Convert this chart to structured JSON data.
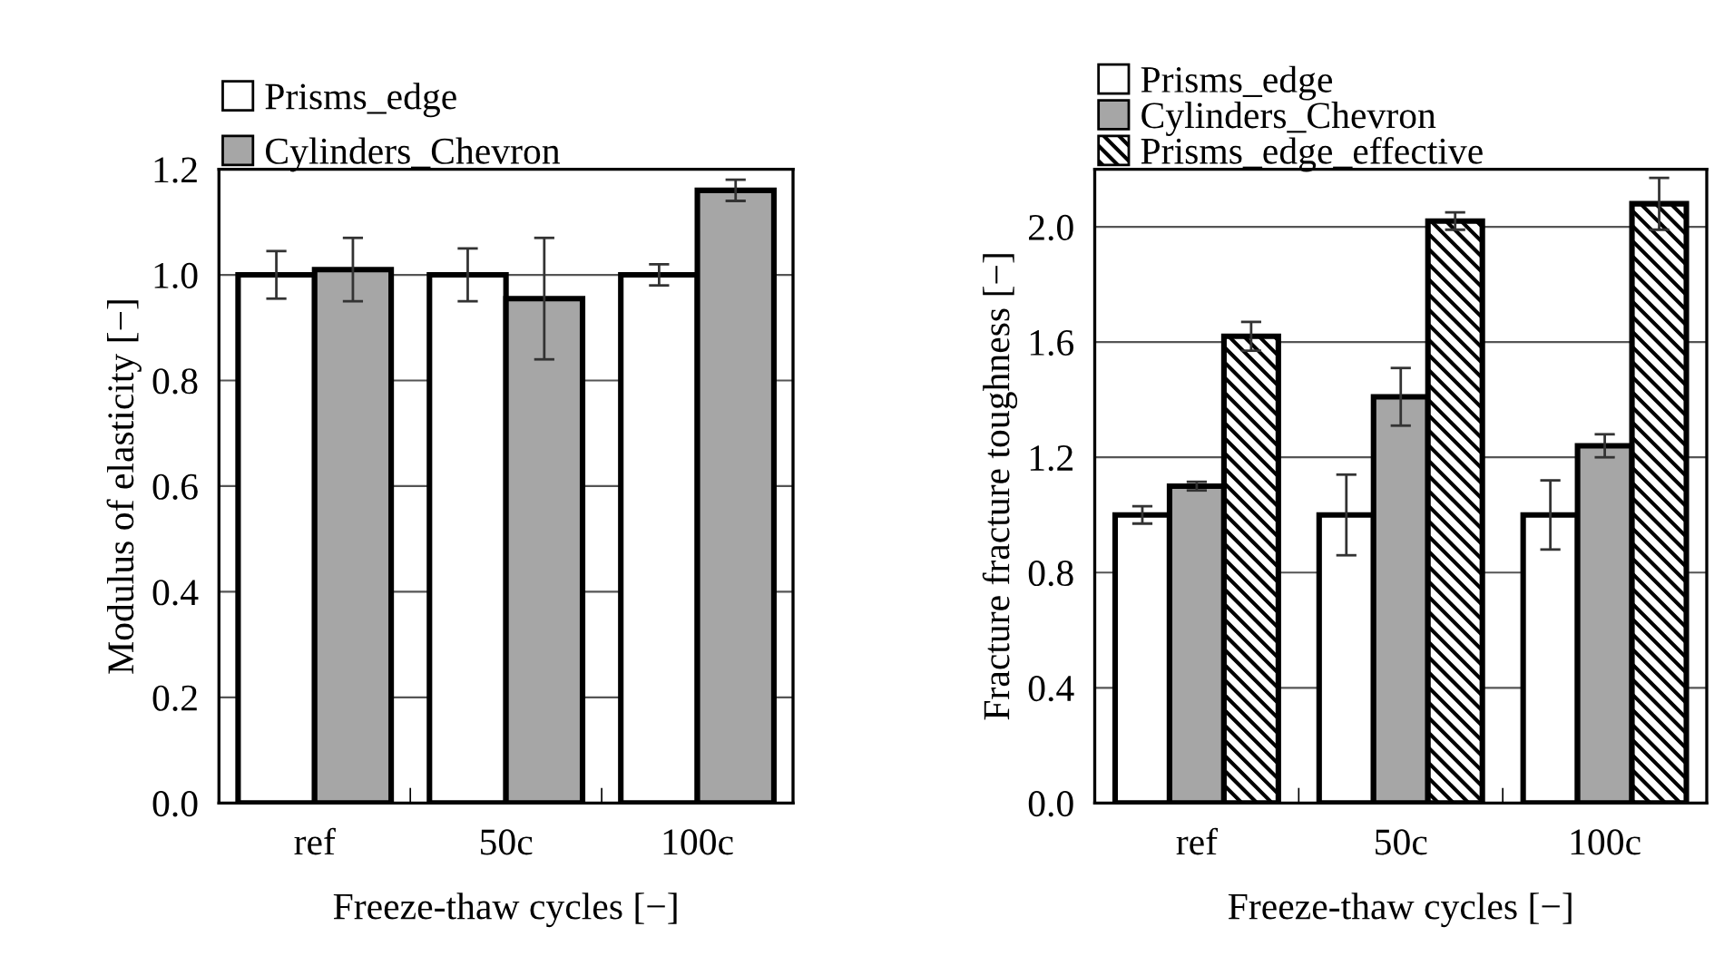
{
  "chart_data": [
    {
      "type": "bar",
      "categories": [
        "ref",
        "50c",
        "100c"
      ],
      "xlabel": "Freeze-thaw cycles [−]",
      "ylabel": "Modulus of elasticity [−]",
      "ylim": [
        0,
        1.2
      ],
      "yticks": [
        {
          "value": 0,
          "label": "0.0"
        },
        {
          "value": 0.2,
          "label": "0.2"
        },
        {
          "value": 0.4,
          "label": "0.4"
        },
        {
          "value": 0.6,
          "label": "0.6"
        },
        {
          "value": 0.8,
          "label": "0.8"
        },
        {
          "value": 1.0,
          "label": "1.0"
        },
        {
          "value": 1.2,
          "label": "1.2"
        }
      ],
      "grid": "y",
      "legend": "top left",
      "series": [
        {
          "name": "Prisms_edge",
          "color": "#ffffff",
          "values": [
            1.0,
            1.0,
            1.0
          ],
          "errors": [
            0.045,
            0.05,
            0.02
          ]
        },
        {
          "name": "Cylinders_Chevron",
          "color": "#a6a6a6",
          "values": [
            1.01,
            0.955,
            1.16
          ],
          "errors": [
            0.06,
            0.115,
            0.02
          ]
        }
      ]
    },
    {
      "type": "bar",
      "categories": [
        "ref",
        "50c",
        "100c"
      ],
      "xlabel": "Freeze-thaw cycles [−]",
      "ylabel": "Fracture fracture toughness [−]",
      "ylim": [
        0,
        2.2
      ],
      "yticks": [
        {
          "value": 0,
          "label": "0.0"
        },
        {
          "value": 0.4,
          "label": "0.4"
        },
        {
          "value": 0.8,
          "label": "0.8"
        },
        {
          "value": 1.2,
          "label": "1.2"
        },
        {
          "value": 1.6,
          "label": "1.6"
        },
        {
          "value": 2.0,
          "label": "2.0"
        }
      ],
      "grid": "y",
      "legend": "top left",
      "series": [
        {
          "name": "Prisms_edge",
          "color": "#ffffff",
          "values": [
            1.0,
            1.0,
            1.0
          ],
          "errors": [
            0.03,
            0.14,
            0.12
          ]
        },
        {
          "name": "Cylinders_Chevron",
          "color": "#a6a6a6",
          "values": [
            1.1,
            1.41,
            1.24
          ],
          "errors": [
            0.015,
            0.1,
            0.04
          ]
        },
        {
          "name": "Prisms_edge_effective",
          "color": "#000000",
          "values": [
            1.62,
            2.02,
            2.08
          ],
          "errors": [
            0.05,
            0.03,
            0.09
          ]
        }
      ]
    }
  ]
}
